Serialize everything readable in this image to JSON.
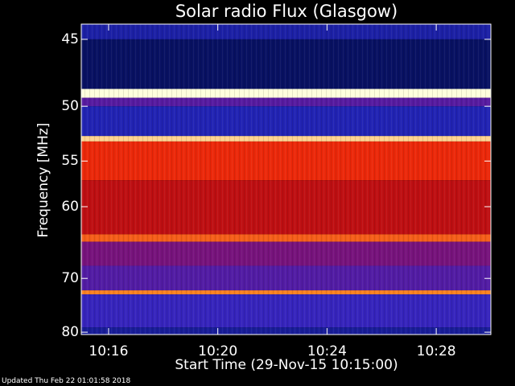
{
  "chart_data": {
    "type": "heatmap",
    "title": "Solar radio Flux (Glasgow)",
    "xlabel": "Start Time (29-Nov-15 10:15:00)",
    "ylabel": "Frequency [MHz]",
    "x_tick_labels": [
      "10:16",
      "10:20",
      "10:24",
      "10:28"
    ],
    "y_tick_labels": [
      "45",
      "50",
      "55",
      "60",
      "70",
      "80"
    ],
    "x_range": [
      "10:15:00",
      "10:30:00"
    ],
    "y_range_mhz": [
      44,
      80.5
    ],
    "y_scale": "reciprocal",
    "colormap": "dark blue to red to yellow",
    "intensity_profile": [
      {
        "freq_mhz": [
          44.0,
          45.0
        ],
        "level": 0.2
      },
      {
        "freq_mhz": [
          45.0,
          48.6
        ],
        "level": 0.1
      },
      {
        "freq_mhz": [
          48.6,
          49.3
        ],
        "level": 1.0
      },
      {
        "freq_mhz": [
          49.3,
          50.0
        ],
        "level": 0.35
      },
      {
        "freq_mhz": [
          50.0,
          52.6
        ],
        "level": 0.22
      },
      {
        "freq_mhz": [
          52.6,
          53.1
        ],
        "level": 0.95
      },
      {
        "freq_mhz": [
          53.1,
          57.0
        ],
        "level": 0.72
      },
      {
        "freq_mhz": [
          57.0,
          63.5
        ],
        "level": 0.58
      },
      {
        "freq_mhz": [
          63.5,
          64.5
        ],
        "level": 0.8
      },
      {
        "freq_mhz": [
          64.5,
          68.0
        ],
        "level": 0.42
      },
      {
        "freq_mhz": [
          68.0,
          72.0
        ],
        "level": 0.34
      },
      {
        "freq_mhz": [
          72.0,
          72.7
        ],
        "level": 0.85
      },
      {
        "freq_mhz": [
          72.7,
          79.0
        ],
        "level": 0.28
      },
      {
        "freq_mhz": [
          79.0,
          80.5
        ],
        "level": 0.18
      }
    ]
  },
  "footer": {
    "updated": "Updated Thu Feb 22 01:01:58 2018"
  }
}
